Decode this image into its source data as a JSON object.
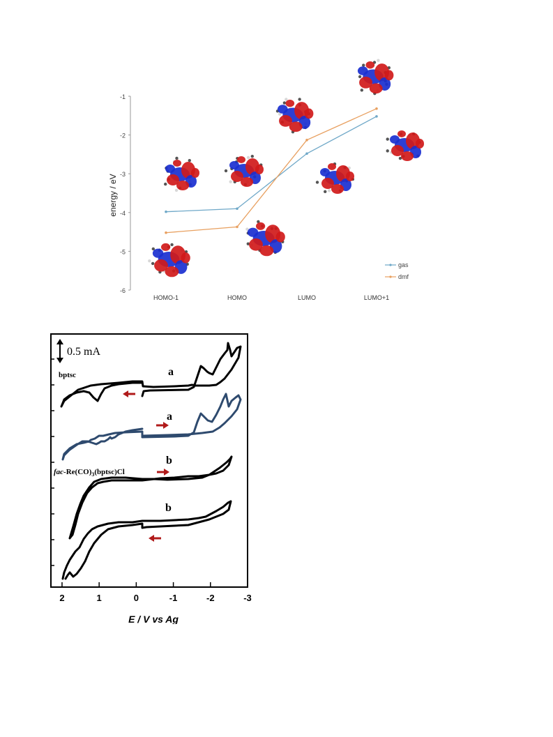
{
  "chart_data": [
    {
      "type": "line",
      "ylabel": "energy / eV",
      "ylim": [
        -6,
        -1
      ],
      "yticks": [
        "-1",
        "-2",
        "-3",
        "-4",
        "-5",
        "-6"
      ],
      "categories": [
        "HOMO-1",
        "HOMO",
        "LUMO",
        "LUMO+1"
      ],
      "series": [
        {
          "name": "gas",
          "color": "#6FA8C8",
          "values": [
            -3.98,
            -3.9,
            -2.48,
            -1.52
          ]
        },
        {
          "name": "dmf",
          "color": "#E8A060",
          "values": [
            -4.52,
            -4.37,
            -2.13,
            -1.32
          ]
        }
      ],
      "legend_position": "bottom-right",
      "orbital_images": "molecular orbital isosurface renderings (red/blue lobes) beside each level"
    },
    {
      "type": "line",
      "xlabel": "E / V vs Ag",
      "xticks": [
        "2",
        "1",
        "0",
        "-1",
        "-2",
        "-3"
      ],
      "xlim": [
        2.3,
        -3
      ],
      "scale_bar": "0.5 mA",
      "labels": {
        "compound1": "bptsc",
        "compound2_prefix": "fac",
        "compound2_rest": "-Re(CO)",
        "compound2_sub": "3",
        "compound2_tail": "(bptsc)Cl"
      },
      "curve_letters": [
        "a",
        "a",
        "b",
        "b"
      ],
      "scan_arrows": [
        "left",
        "right",
        "right",
        "left"
      ],
      "colors": {
        "black_trace": "#000000",
        "blue_trace": "#2E4A6E",
        "arrow": "#B01A1A"
      },
      "series": [
        {
          "curve": "a",
          "color": "#000000",
          "x": [
            0.0,
            -0.5,
            -1.0,
            -1.4,
            -1.6,
            -1.8,
            -2.0,
            -2.2,
            -2.4,
            -2.6,
            -2.75
          ]
        },
        {
          "curve": "a",
          "color": "#2E4A6E",
          "x": [
            0.0,
            -0.5,
            -1.0,
            -1.4,
            -1.6,
            -1.8,
            -2.0,
            -2.2,
            -2.4,
            -2.6,
            -2.75
          ]
        },
        {
          "curve": "b",
          "color": "#000000",
          "x": [
            0.0,
            -0.5,
            -1.0,
            -1.5,
            -2.0,
            -2.5
          ]
        },
        {
          "curve": "b",
          "color": "#000000",
          "x": [
            0.0,
            -0.5,
            -1.0,
            -1.5,
            -2.0,
            -2.5
          ]
        }
      ]
    }
  ]
}
